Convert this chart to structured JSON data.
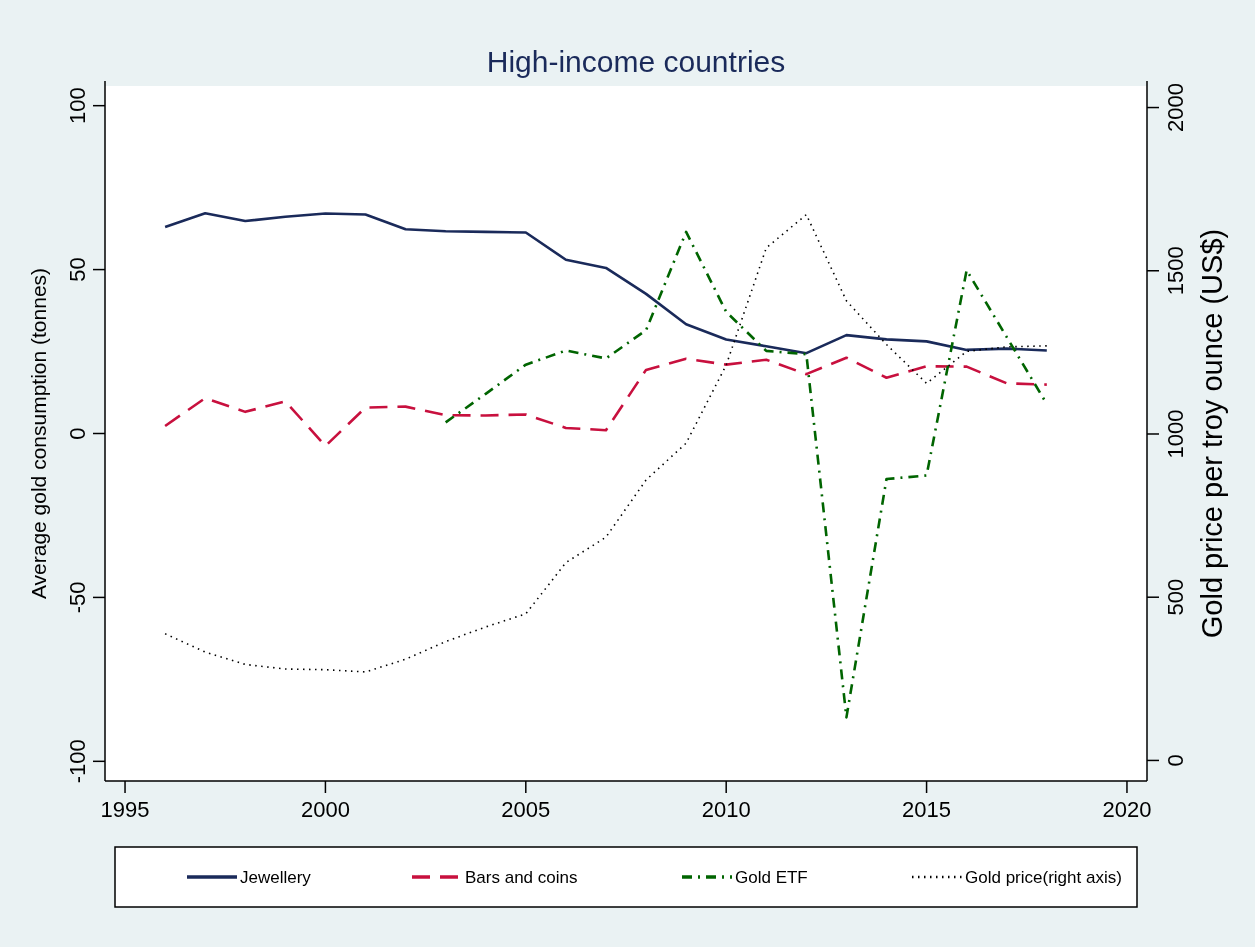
{
  "chart_data": {
    "type": "line",
    "title": "High-income countries",
    "ylabel": "Average gold consumption (tonnes)",
    "y2label": "Gold price per troy ounce (US$)",
    "x": [
      1996,
      1997,
      1998,
      1999,
      2000,
      2001,
      2002,
      2003,
      2004,
      2005,
      2006,
      2007,
      2008,
      2009,
      2010,
      2011,
      2012,
      2013,
      2014,
      2015,
      2016,
      2017,
      2018
    ],
    "xlim": [
      1994.5,
      2020.5
    ],
    "xticks": [
      1995,
      2000,
      2005,
      2010,
      2015,
      2020
    ],
    "ylim": [
      -106,
      106
    ],
    "yticks": [
      -100,
      -50,
      0,
      50,
      100
    ],
    "y2lim": [
      -63,
      2066
    ],
    "y2ticks": [
      0,
      500,
      1000,
      1500,
      2000
    ],
    "grid": false,
    "legend": "bottom",
    "marker": "none",
    "series": [
      {
        "name": "Jewellery",
        "color": "#1a2a5a",
        "line_style": "solid",
        "values": [
          63.0,
          67.2,
          64.8,
          66.1,
          67.1,
          66.8,
          62.3,
          61.7,
          61.5,
          61.3,
          53.0,
          50.5,
          42.6,
          33.3,
          28.7,
          26.6,
          24.5,
          30.0,
          28.7,
          28.1,
          25.5,
          25.9,
          25.3
        ]
      },
      {
        "name": "Bars and coins",
        "color": "#c8103e",
        "line_style": "dashed",
        "values": [
          2.3,
          10.8,
          6.6,
          9.8,
          -3.8,
          7.9,
          8.2,
          5.6,
          5.5,
          5.8,
          1.7,
          1.0,
          19.4,
          22.8,
          21.0,
          22.5,
          18.1,
          23.1,
          17.0,
          20.5,
          20.4,
          15.3,
          14.9
        ]
      },
      {
        "name": "Gold ETF",
        "color": "#006400",
        "line_style": "dashdot",
        "values": [
          null,
          null,
          null,
          null,
          null,
          null,
          null,
          3.4,
          12.1,
          21.0,
          25.3,
          22.9,
          31.5,
          61.5,
          37.1,
          25.2,
          24.2,
          -86.6,
          -13.9,
          -12.8,
          49.8,
          29.4,
          9.0
        ]
      },
      {
        "name": "Gold price(right axis)",
        "color": "#000000",
        "line_style": "dotted",
        "axis": "y2",
        "values": [
          388,
          332,
          294,
          280,
          278,
          271,
          310,
          364,
          409,
          449,
          606,
          684,
          859,
          972,
          1211,
          1570,
          1672,
          1408,
          1274,
          1155,
          1253,
          1267,
          1270
        ]
      }
    ]
  }
}
